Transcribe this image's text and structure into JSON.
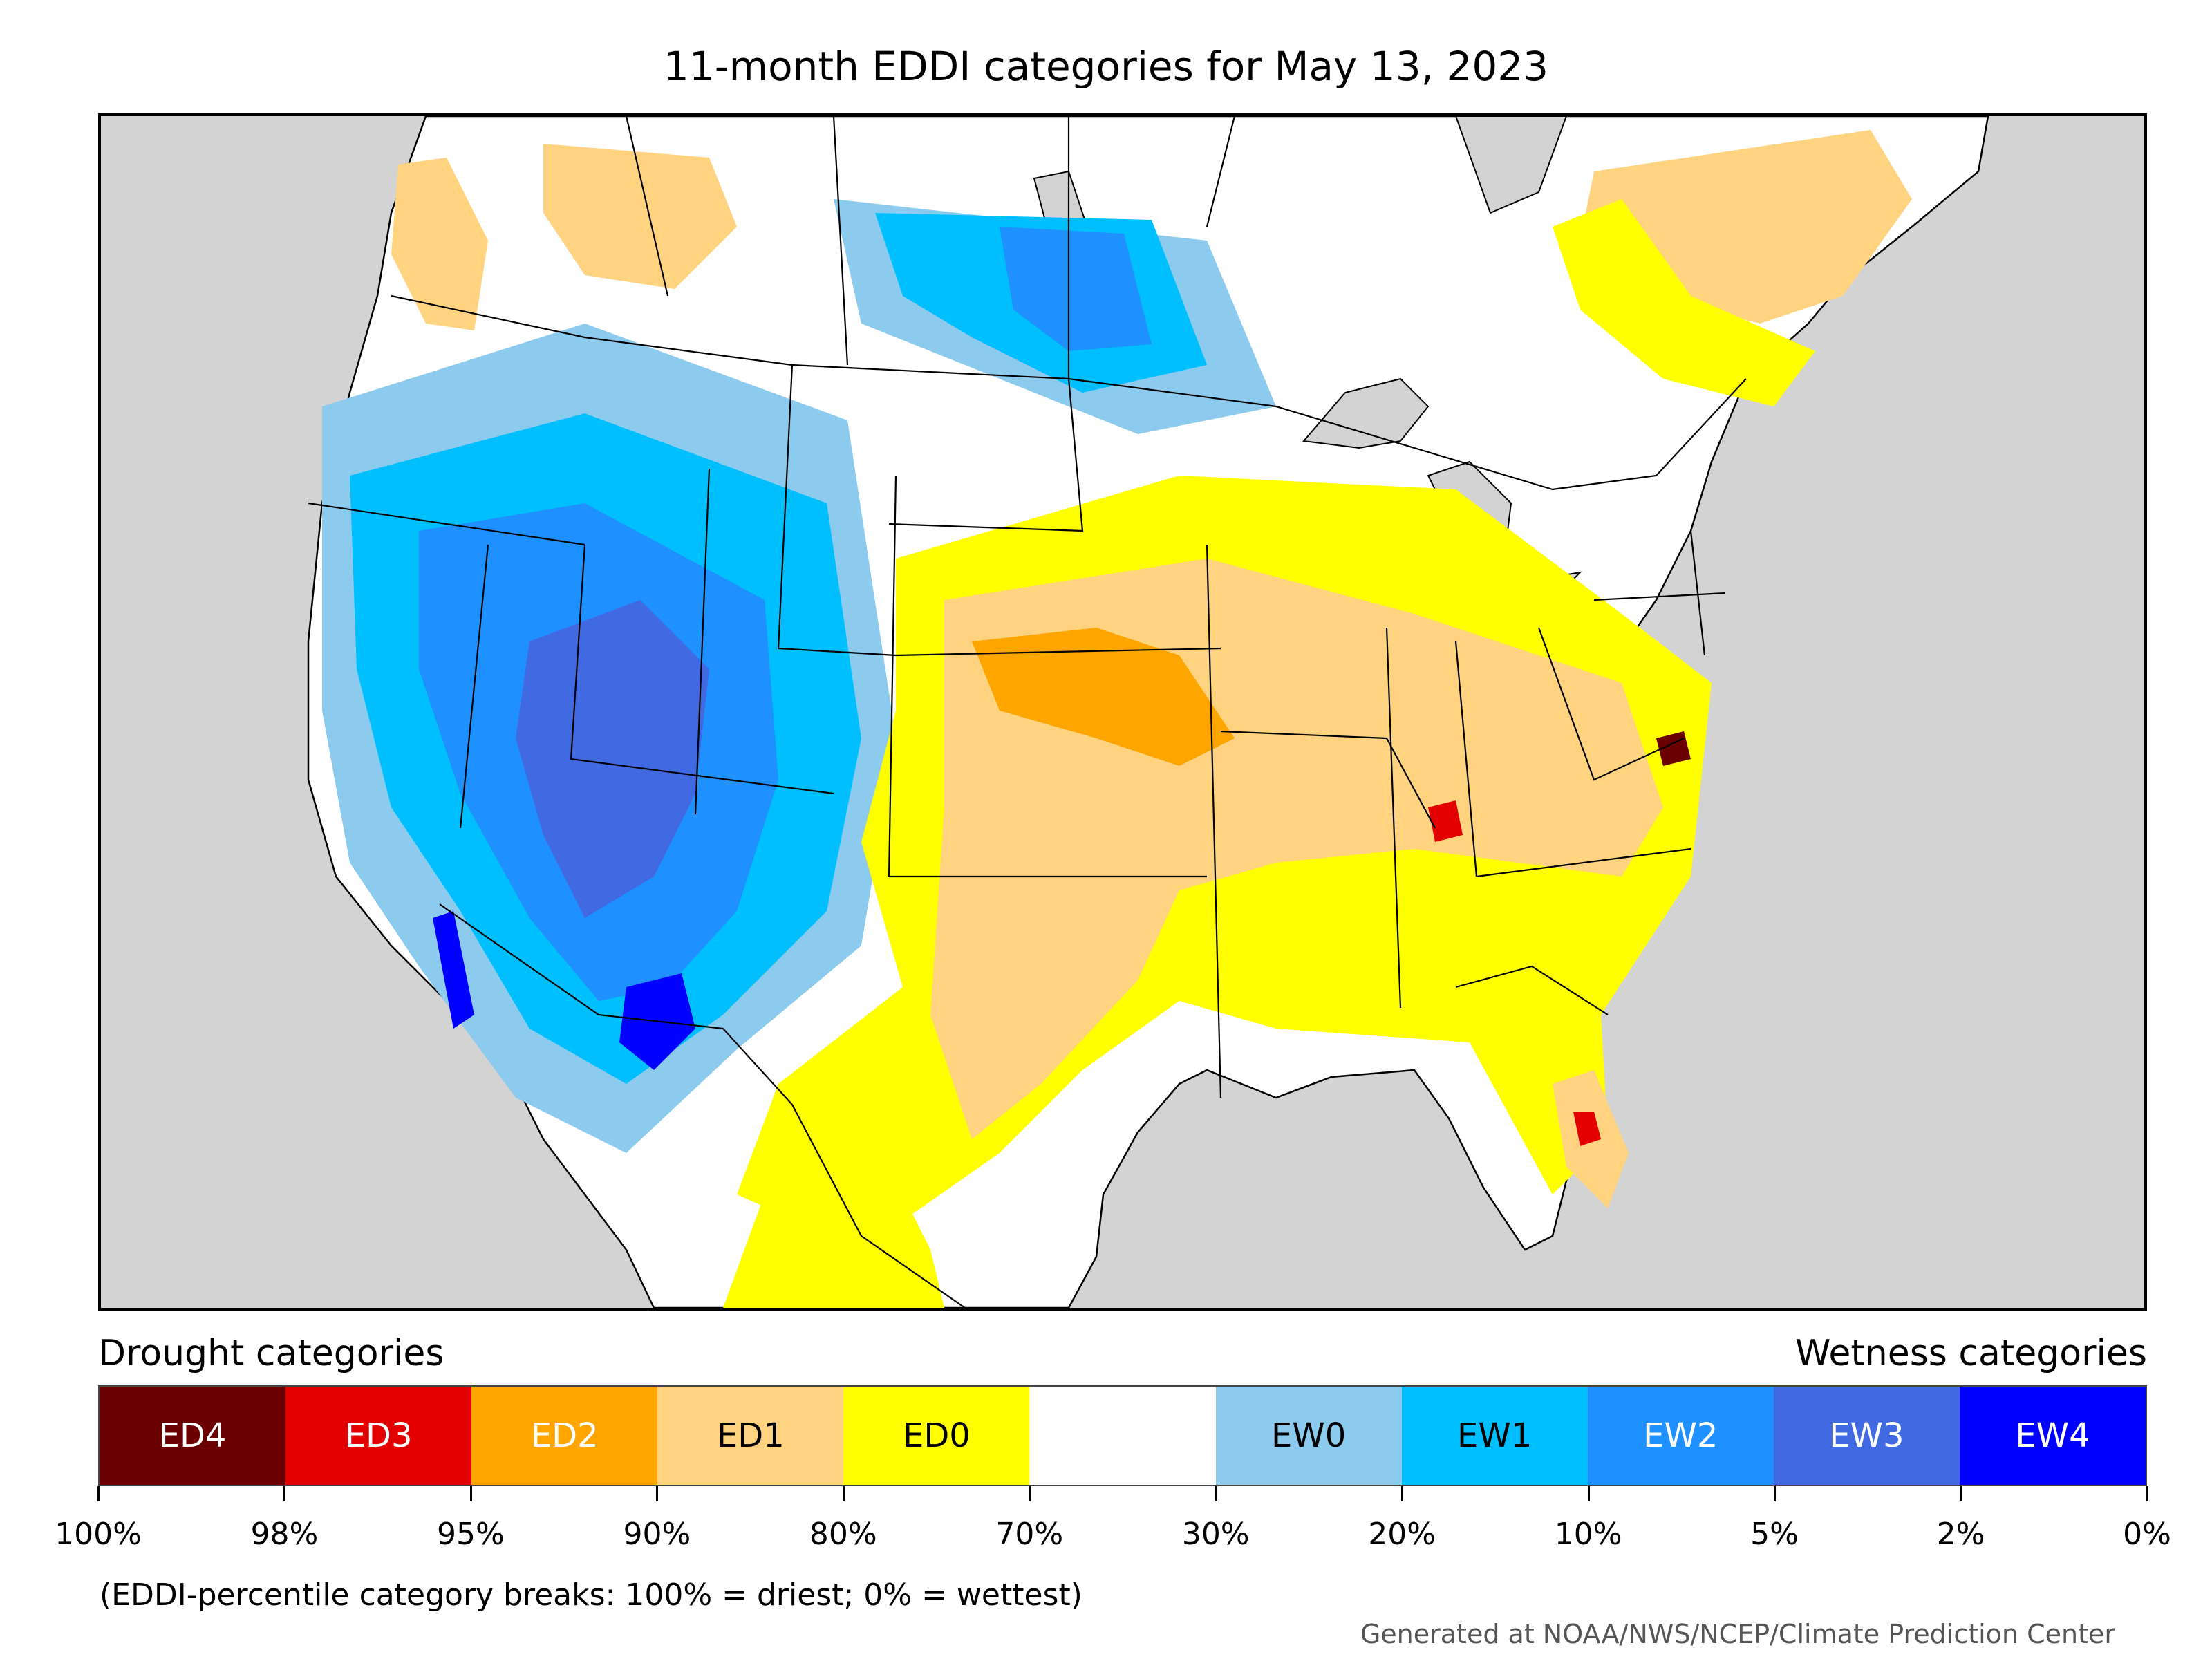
{
  "title": "11-month EDDI categories for May 13, 2023",
  "legend": {
    "drought_label": "Drought categories",
    "wetness_label": "Wetness categories",
    "categories": [
      {
        "label": "ED4",
        "color": "#6b0000",
        "text_color": "#ffffff"
      },
      {
        "label": "ED3",
        "color": "#e30000",
        "text_color": "#ffffff"
      },
      {
        "label": "ED2",
        "color": "#ffa500",
        "text_color": "#ffffff"
      },
      {
        "label": "ED1",
        "color": "#ffd37f",
        "text_color": "#000000"
      },
      {
        "label": "ED0",
        "color": "#ffff00",
        "text_color": "#000000"
      },
      {
        "label": "",
        "color": "#ffffff",
        "text_color": "#000000"
      },
      {
        "label": "EW0",
        "color": "#8ccbee",
        "text_color": "#000000"
      },
      {
        "label": "EW1",
        "color": "#00bfff",
        "text_color": "#000000"
      },
      {
        "label": "EW2",
        "color": "#1e90ff",
        "text_color": "#ffffff"
      },
      {
        "label": "EW3",
        "color": "#4169e1",
        "text_color": "#ffffff"
      },
      {
        "label": "EW4",
        "color": "#0000ff",
        "text_color": "#ffffff"
      }
    ],
    "tick_labels": [
      "100%",
      "98%",
      "95%",
      "90%",
      "80%",
      "70%",
      "30%",
      "20%",
      "10%",
      "5%",
      "2%",
      "0%"
    ]
  },
  "note": "(EDDI-percentile category breaks: 100% = driest; 0% = wettest)",
  "credit": "Generated at NOAA/NWS/NCEP/Climate Prediction Center",
  "map": {
    "background_color": "#d3d3d3",
    "land_color": "#ffffff",
    "water_color": "#d3d3d3"
  }
}
